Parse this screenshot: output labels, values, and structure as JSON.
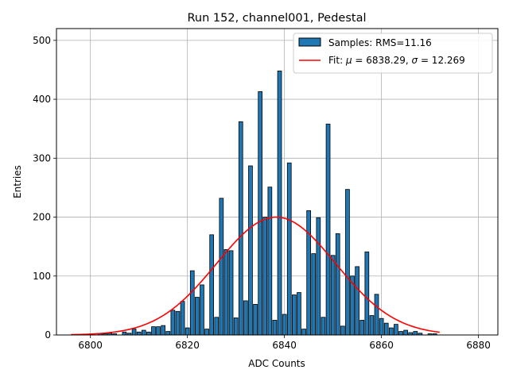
{
  "chart_data": {
    "type": "bar",
    "title": "Run 152, channel001, Pedestal",
    "xlabel": "ADC Counts",
    "ylabel": "Entries",
    "xlim": [
      6793,
      6884
    ],
    "ylim": [
      0,
      520
    ],
    "xticks": [
      6800,
      6820,
      6840,
      6860,
      6880
    ],
    "yticks": [
      0,
      100,
      200,
      300,
      400,
      500
    ],
    "grid": true,
    "legend_position": "top-right",
    "bin_width": 0.8,
    "bars_x": [
      6800,
      6801,
      6802,
      6803,
      6804,
      6805,
      6806,
      6807,
      6808,
      6809,
      6810,
      6811,
      6812,
      6813,
      6814,
      6815,
      6816,
      6817,
      6818,
      6819,
      6820,
      6821,
      6822,
      6823,
      6824,
      6825,
      6826,
      6827,
      6828,
      6829,
      6830,
      6831,
      6832,
      6833,
      6834,
      6835,
      6836,
      6837,
      6838,
      6839,
      6840,
      6841,
      6842,
      6843,
      6844,
      6845,
      6846,
      6847,
      6848,
      6849,
      6850,
      6851,
      6852,
      6853,
      6854,
      6855,
      6856,
      6857,
      6858,
      6859,
      6860,
      6861,
      6862,
      6863,
      6864,
      6865,
      6866,
      6867,
      6868,
      6869,
      6870,
      6871
    ],
    "counts": [
      0,
      0,
      2,
      2,
      3,
      2,
      0,
      5,
      3,
      10,
      5,
      8,
      5,
      14,
      14,
      16,
      6,
      42,
      40,
      57,
      12,
      109,
      64,
      85,
      10,
      170,
      30,
      232,
      145,
      143,
      29,
      362,
      58,
      287,
      52,
      413,
      200,
      251,
      25,
      448,
      35,
      292,
      68,
      72,
      10,
      211,
      138,
      199,
      30,
      358,
      135,
      172,
      15,
      247,
      100,
      116,
      25,
      141,
      33,
      69,
      28,
      20,
      12,
      18,
      6,
      8,
      4,
      6,
      3,
      0,
      2,
      2
    ],
    "series": [
      {
        "name": "Samples: RMS=11.16",
        "kind": "histogram",
        "color": "#1f77b4",
        "edgecolor": "#000000"
      },
      {
        "name": "Fit: μ = 6838.29, σ = 12.269",
        "kind": "line",
        "color": "#ff0000",
        "mu": 6838.29,
        "sigma": 12.269,
        "amplitude": 200,
        "x_range": [
          6796,
          6872
        ]
      }
    ],
    "legend": {
      "samples_label": "Samples: RMS=11.16",
      "fit_label_prefix": "Fit: ",
      "fit_mu_symbol": "μ",
      "fit_mu_value": " = 6838.29, ",
      "fit_sigma_symbol": "σ",
      "fit_sigma_value": " = 12.269"
    }
  }
}
